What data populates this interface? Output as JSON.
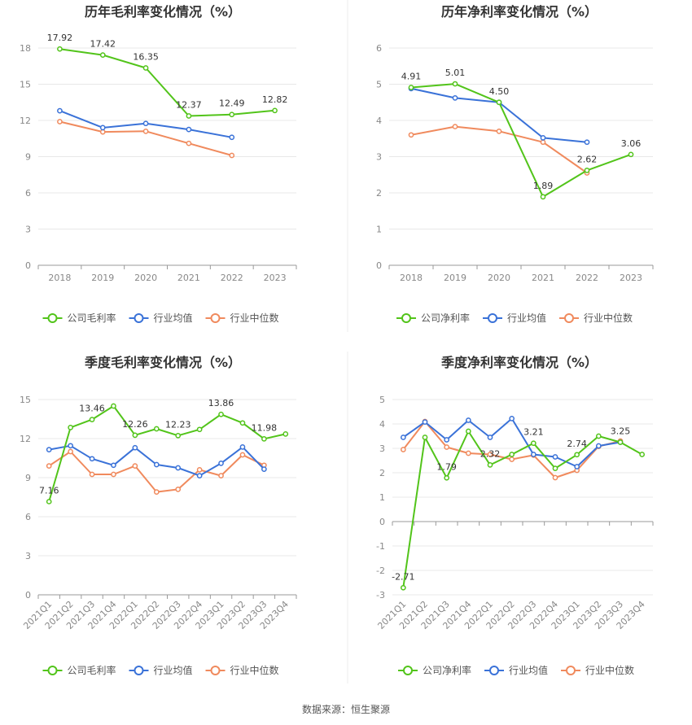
{
  "colors": {
    "company": "#52c41a",
    "industry_avg": "#3a72d8",
    "industry_median": "#f08a5d",
    "grid": "#e8e8e8",
    "axis": "#999999",
    "divider": "#eeeeee"
  },
  "footer": {
    "source": "数据来源：恒生聚源"
  },
  "chart_data": [
    {
      "type": "line",
      "title": "历年毛利率变化情况（%）",
      "categories": [
        "2018",
        "2019",
        "2020",
        "2021",
        "2022",
        "2023"
      ],
      "ylim": [
        0,
        18
      ],
      "yticks": [
        "0",
        "3",
        "6",
        "9",
        "12",
        "15",
        "18"
      ],
      "legend": "bottom",
      "series": [
        {
          "name": "公司毛利率",
          "role": "company",
          "values": [
            17.92,
            17.42,
            16.35,
            12.37,
            12.49,
            12.82
          ],
          "labels": [
            "17.92",
            "17.42",
            "16.35",
            "12.37",
            "12.49",
            "12.82"
          ]
        },
        {
          "name": "行业均值",
          "role": "industry_avg",
          "values": [
            12.8,
            11.4,
            11.75,
            11.25,
            10.6,
            null
          ]
        },
        {
          "name": "行业中位数",
          "role": "industry_median",
          "values": [
            11.9,
            11.05,
            11.1,
            10.1,
            9.1,
            null
          ]
        }
      ]
    },
    {
      "type": "line",
      "title": "历年净利率变化情况（%）",
      "categories": [
        "2018",
        "2019",
        "2020",
        "2021",
        "2022",
        "2023"
      ],
      "ylim": [
        0,
        6
      ],
      "yticks": [
        "0",
        "1",
        "2",
        "3",
        "4",
        "5",
        "6"
      ],
      "legend": "bottom",
      "series": [
        {
          "name": "公司净利率",
          "role": "company",
          "values": [
            4.91,
            5.01,
            4.5,
            1.89,
            2.62,
            3.06
          ],
          "labels": [
            "4.91",
            "5.01",
            "4.50",
            "1.89",
            "2.62",
            "3.06"
          ]
        },
        {
          "name": "行业均值",
          "role": "industry_avg",
          "values": [
            4.88,
            4.62,
            4.5,
            3.52,
            3.4,
            null
          ]
        },
        {
          "name": "行业中位数",
          "role": "industry_median",
          "values": [
            3.6,
            3.83,
            3.7,
            3.4,
            2.55,
            null
          ]
        }
      ]
    },
    {
      "type": "line",
      "title": "季度毛利率变化情况（%）",
      "categories": [
        "2021Q1",
        "2021Q2",
        "2021Q3",
        "2021Q4",
        "2022Q1",
        "2022Q2",
        "2022Q3",
        "2022Q4",
        "2023Q1",
        "2023Q2",
        "2023Q3",
        "2023Q4"
      ],
      "ylim": [
        0,
        15
      ],
      "yticks": [
        "0",
        "3",
        "6",
        "9",
        "12",
        "15"
      ],
      "legend": "bottom",
      "series": [
        {
          "name": "公司毛利率",
          "role": "company",
          "values": [
            7.16,
            12.85,
            13.46,
            14.5,
            12.26,
            12.75,
            12.23,
            12.7,
            13.86,
            13.2,
            11.98,
            12.35
          ],
          "labels": [
            "7.16",
            "",
            "13.46",
            "",
            "12.26",
            "",
            "12.23",
            "",
            "13.86",
            "",
            "11.98",
            ""
          ]
        },
        {
          "name": "行业均值",
          "role": "industry_avg",
          "values": [
            11.15,
            11.45,
            10.45,
            9.95,
            11.3,
            10.0,
            9.75,
            9.15,
            10.1,
            11.35,
            9.65,
            null
          ]
        },
        {
          "name": "行业中位数",
          "role": "industry_median",
          "values": [
            9.9,
            11.0,
            9.25,
            9.25,
            9.9,
            7.9,
            8.1,
            9.6,
            9.15,
            10.75,
            9.95,
            null
          ]
        }
      ]
    },
    {
      "type": "line",
      "title": "季度净利率变化情况（%）",
      "categories": [
        "2021Q1",
        "2021Q2",
        "2021Q3",
        "2021Q4",
        "2022Q1",
        "2022Q2",
        "2022Q3",
        "2022Q4",
        "2023Q1",
        "2023Q2",
        "2023Q3",
        "2023Q4"
      ],
      "ylim": [
        -3,
        5
      ],
      "yticks": [
        "-3",
        "-2",
        "-1",
        "0",
        "1",
        "2",
        "3",
        "4",
        "5"
      ],
      "legend": "bottom",
      "series": [
        {
          "name": "公司净利率",
          "role": "company",
          "values": [
            -2.71,
            3.45,
            1.79,
            3.7,
            2.32,
            2.75,
            3.21,
            2.18,
            2.74,
            3.5,
            3.25,
            2.75
          ],
          "labels": [
            "-2.71",
            "",
            "1.79",
            "",
            "2.32",
            "",
            "3.21",
            "",
            "2.74",
            "",
            "3.25",
            ""
          ]
        },
        {
          "name": "行业均值",
          "role": "industry_avg",
          "values": [
            3.45,
            4.08,
            3.35,
            4.15,
            3.45,
            4.22,
            2.75,
            2.65,
            2.25,
            3.1,
            3.25,
            null
          ]
        },
        {
          "name": "行业中位数",
          "role": "industry_median",
          "values": [
            2.95,
            4.1,
            3.05,
            2.8,
            2.75,
            2.55,
            2.72,
            1.8,
            2.1,
            3.08,
            3.3,
            null
          ]
        }
      ]
    }
  ]
}
